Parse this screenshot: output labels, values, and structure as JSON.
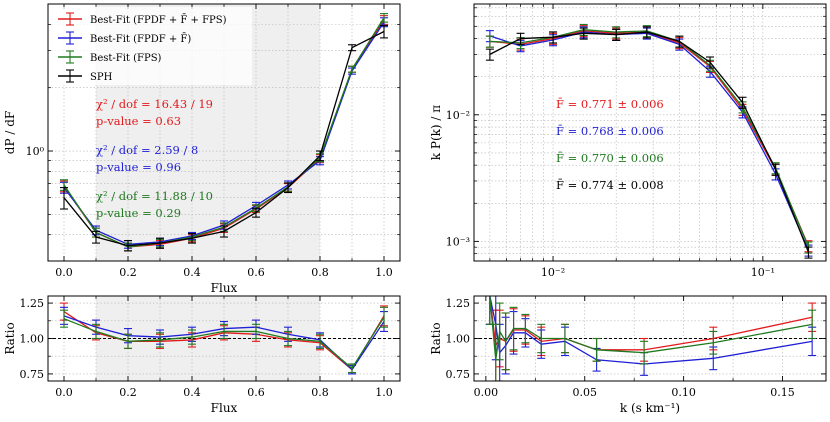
{
  "colors": {
    "red": "#e31a1c",
    "blue": "#1f1fd6",
    "green": "#1f7a1f",
    "black": "#000000",
    "shade": "#efefef"
  },
  "chart_data": [
    {
      "id": "flux_pdf",
      "type": "line",
      "xlabel": "Flux",
      "ylabel": "dP / dF",
      "xlim": [
        -0.05,
        1.05
      ],
      "ylim": [
        0.3,
        5.0
      ],
      "yscale": "log",
      "x_ticks": [
        0.0,
        0.2,
        0.4,
        0.6,
        0.8,
        1.0
      ],
      "x_tick_labels": [
        "0.0",
        "0.2",
        "0.4",
        "0.6",
        "0.8",
        "1.0"
      ],
      "y_ticks": [
        1.0
      ],
      "y_tick_labels": [
        "10⁰"
      ],
      "shaded_x_range": [
        0.1,
        0.8
      ],
      "x": [
        0.0,
        0.1,
        0.2,
        0.3,
        0.4,
        0.5,
        0.6,
        0.7,
        0.8,
        0.9,
        1.0
      ],
      "series": [
        {
          "name": "Best-Fit (FPDF + F̄ + FPS)",
          "color": "red",
          "values": [
            0.68,
            0.41,
            0.35,
            0.36,
            0.385,
            0.43,
            0.53,
            0.67,
            0.92,
            2.45,
            4.2
          ],
          "err": [
            0.04,
            0.02,
            0.015,
            0.015,
            0.015,
            0.02,
            0.02,
            0.03,
            0.04,
            0.08,
            0.2
          ]
        },
        {
          "name": "Best-Fit (FPDF + F̄)",
          "color": "blue",
          "values": [
            0.67,
            0.42,
            0.36,
            0.37,
            0.395,
            0.445,
            0.55,
            0.69,
            0.9,
            2.4,
            4.1
          ],
          "err": [
            0.04,
            0.02,
            0.015,
            0.015,
            0.015,
            0.02,
            0.02,
            0.03,
            0.04,
            0.08,
            0.2
          ]
        },
        {
          "name": "Best-Fit (FPS)",
          "color": "green",
          "values": [
            0.69,
            0.41,
            0.35,
            0.365,
            0.39,
            0.435,
            0.535,
            0.675,
            0.93,
            2.45,
            4.3
          ],
          "err": [
            0.04,
            0.02,
            0.015,
            0.015,
            0.015,
            0.02,
            0.02,
            0.03,
            0.04,
            0.08,
            0.2
          ]
        },
        {
          "name": "SPH",
          "color": "black",
          "values": [
            0.6,
            0.39,
            0.355,
            0.365,
            0.385,
            0.415,
            0.51,
            0.67,
            0.95,
            3.1,
            3.7
          ],
          "err": [
            0.07,
            0.025,
            0.02,
            0.02,
            0.02,
            0.025,
            0.025,
            0.035,
            0.05,
            0.1,
            0.25
          ]
        }
      ],
      "legend": [
        "Best-Fit (FPDF + F̄ + FPS)",
        "Best-Fit (FPDF + F̄)",
        "Best-Fit (FPS)",
        "SPH"
      ],
      "legend_position": "top-left",
      "annotations": [
        {
          "color": "red",
          "line1": "χ² / dof = 16.43 / 19",
          "line2": "p-value = 0.63"
        },
        {
          "color": "blue",
          "line1": "χ² / dof = 2.59 / 8",
          "line2": "p-value = 0.96"
        },
        {
          "color": "green",
          "line1": "χ² / dof = 11.88 / 10",
          "line2": "p-value = 0.29"
        }
      ]
    },
    {
      "id": "flux_power",
      "type": "line",
      "xlabel": "",
      "ylabel": "k P(k) / π",
      "xscale": "log",
      "yscale": "log",
      "xlim": [
        0.0042,
        0.2
      ],
      "ylim": [
        0.0007,
        0.075
      ],
      "x_ticks": [
        0.01,
        0.1
      ],
      "x_tick_labels": [
        "10⁻²",
        "10⁻¹"
      ],
      "y_ticks": [
        0.001,
        0.01
      ],
      "y_tick_labels": [
        "10⁻³",
        "10⁻²"
      ],
      "x": [
        0.005,
        0.007,
        0.01,
        0.014,
        0.02,
        0.028,
        0.04,
        0.056,
        0.08,
        0.115,
        0.165
      ],
      "series": [
        {
          "name": "Best-Fit (FPDF + F̄ + FPS)",
          "color": "red",
          "values": [
            0.038,
            0.036,
            0.04,
            0.046,
            0.044,
            0.045,
            0.037,
            0.024,
            0.011,
            0.0037,
            0.00092
          ],
          "err_frac": 0.1
        },
        {
          "name": "Best-Fit (FPDF + F̄)",
          "color": "blue",
          "values": [
            0.042,
            0.035,
            0.039,
            0.045,
            0.043,
            0.044,
            0.036,
            0.022,
            0.0105,
            0.0034,
            0.00085
          ],
          "err_frac": 0.1
        },
        {
          "name": "Best-Fit (FPS)",
          "color": "green",
          "values": [
            0.038,
            0.037,
            0.041,
            0.047,
            0.045,
            0.046,
            0.038,
            0.0245,
            0.0115,
            0.0038,
            0.0009
          ],
          "err_frac": 0.1
        },
        {
          "name": "SPH",
          "color": "black",
          "values": [
            0.03,
            0.04,
            0.041,
            0.044,
            0.043,
            0.045,
            0.038,
            0.026,
            0.0125,
            0.0037,
            0.00082
          ],
          "err_frac": 0.1
        }
      ],
      "annotations": [
        {
          "color": "red",
          "text": "F̄ = 0.771 ± 0.006"
        },
        {
          "color": "blue",
          "text": "F̄ = 0.768 ± 0.006"
        },
        {
          "color": "green",
          "text": "F̄ = 0.770 ± 0.006"
        },
        {
          "color": "black",
          "text": "F̄ = 0.774 ± 0.008"
        }
      ]
    },
    {
      "id": "flux_pdf_ratio",
      "type": "line",
      "xlabel": "Flux",
      "ylabel": "Ratio",
      "xlim": [
        -0.05,
        1.05
      ],
      "ylim": [
        0.7,
        1.3
      ],
      "x_ticks": [
        0.0,
        0.2,
        0.4,
        0.6,
        0.8,
        1.0
      ],
      "x_tick_labels": [
        "0.0",
        "0.2",
        "0.4",
        "0.6",
        "0.8",
        "1.0"
      ],
      "y_ticks": [
        0.75,
        1.0,
        1.25
      ],
      "y_tick_labels": [
        "0.75",
        "1.00",
        "1.25"
      ],
      "reference_line": 1.0,
      "shaded_x_range": [
        0.1,
        0.8
      ],
      "x": [
        0.0,
        0.1,
        0.2,
        0.3,
        0.4,
        0.5,
        0.6,
        0.7,
        0.8,
        0.9,
        1.0
      ],
      "series": [
        {
          "name": "Best-Fit (FPDF + F̄ + FPS)",
          "color": "red",
          "values": [
            1.19,
            1.04,
            0.98,
            0.98,
            0.99,
            1.04,
            1.03,
            0.99,
            0.97,
            0.78,
            1.16
          ],
          "err": [
            0.06,
            0.05,
            0.05,
            0.05,
            0.05,
            0.05,
            0.05,
            0.05,
            0.05,
            0.03,
            0.07
          ]
        },
        {
          "name": "Best-Fit (FPDF + F̄)",
          "color": "blue",
          "values": [
            1.16,
            1.08,
            1.02,
            1.01,
            1.03,
            1.07,
            1.08,
            1.03,
            0.99,
            0.78,
            1.12
          ],
          "err": [
            0.06,
            0.05,
            0.05,
            0.05,
            0.05,
            0.05,
            0.05,
            0.05,
            0.05,
            0.03,
            0.07
          ]
        },
        {
          "name": "Best-Fit (FPS)",
          "color": "green",
          "values": [
            1.14,
            1.05,
            0.98,
            0.99,
            1.01,
            1.05,
            1.05,
            1.0,
            0.98,
            0.79,
            1.15
          ],
          "err": [
            0.06,
            0.05,
            0.05,
            0.05,
            0.05,
            0.05,
            0.05,
            0.05,
            0.05,
            0.03,
            0.07
          ]
        }
      ]
    },
    {
      "id": "flux_power_ratio",
      "type": "line",
      "xlabel": "k (s km⁻¹)",
      "ylabel": "Ratio",
      "xlim": [
        -0.006,
        0.172
      ],
      "ylim": [
        0.7,
        1.3
      ],
      "x_ticks": [
        0.0,
        0.05,
        0.1,
        0.15
      ],
      "x_tick_labels": [
        "0.00",
        "0.05",
        "0.10",
        "0.15"
      ],
      "y_ticks": [
        0.75,
        1.0,
        1.25
      ],
      "y_tick_labels": [
        "0.75",
        "1.00",
        "1.25"
      ],
      "reference_line": 1.0,
      "x": [
        0.002,
        0.005,
        0.007,
        0.01,
        0.014,
        0.02,
        0.028,
        0.04,
        0.056,
        0.08,
        0.115,
        0.165
      ],
      "series": [
        {
          "name": "Best-Fit (FPDF + F̄ + FPS)",
          "color": "red",
          "values": [
            1.3,
            0.95,
            1.0,
            0.98,
            1.06,
            1.06,
            0.98,
            1.0,
            0.92,
            0.92,
            1.0,
            1.15
          ],
          "err": [
            0.2,
            0.25,
            0.2,
            0.2,
            0.15,
            0.1,
            0.1,
            0.1,
            0.08,
            0.08,
            0.08,
            0.1
          ]
        },
        {
          "name": "Best-Fit (FPDF + F̄)",
          "color": "blue",
          "values": [
            1.3,
            1.1,
            0.9,
            0.95,
            1.04,
            1.04,
            0.96,
            0.98,
            0.85,
            0.82,
            0.86,
            0.98
          ],
          "err": [
            0.2,
            0.25,
            0.2,
            0.2,
            0.15,
            0.1,
            0.1,
            0.1,
            0.08,
            0.08,
            0.08,
            0.1
          ]
        },
        {
          "name": "Best-Fit (FPS)",
          "color": "green",
          "values": [
            1.3,
            0.85,
            1.05,
            0.98,
            1.07,
            1.07,
            1.0,
            1.0,
            0.92,
            0.9,
            0.97,
            1.1
          ],
          "err": [
            0.2,
            0.25,
            0.2,
            0.2,
            0.15,
            0.1,
            0.1,
            0.1,
            0.08,
            0.08,
            0.08,
            0.1
          ]
        }
      ]
    }
  ]
}
